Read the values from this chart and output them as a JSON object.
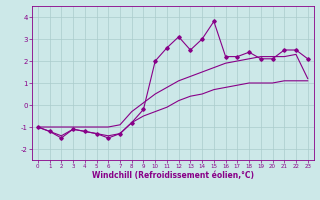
{
  "xlabel": "Windchill (Refroidissement éolien,°C)",
  "bg_color": "#cce8e8",
  "line_color": "#880088",
  "grid_color": "#aacccc",
  "x_main": [
    0,
    1,
    2,
    3,
    4,
    5,
    6,
    7,
    8,
    9,
    10,
    11,
    12,
    13,
    14,
    15,
    16,
    17,
    18,
    19,
    20,
    21,
    22,
    23
  ],
  "y_main": [
    -1.0,
    -1.2,
    -1.5,
    -1.1,
    -1.2,
    -1.3,
    -1.5,
    -1.3,
    -0.8,
    -0.2,
    2.0,
    2.6,
    3.1,
    2.5,
    3.0,
    3.8,
    2.2,
    2.2,
    2.4,
    2.1,
    2.1,
    2.5,
    2.5,
    2.1
  ],
  "y_upper": [
    -1.0,
    -1.0,
    -1.0,
    -1.0,
    -1.0,
    -1.0,
    -1.0,
    -0.9,
    -0.3,
    0.1,
    0.5,
    0.8,
    1.1,
    1.3,
    1.5,
    1.7,
    1.9,
    2.0,
    2.1,
    2.2,
    2.2,
    2.2,
    2.3,
    1.2
  ],
  "y_lower": [
    -1.0,
    -1.2,
    -1.4,
    -1.1,
    -1.2,
    -1.3,
    -1.4,
    -1.3,
    -0.8,
    -0.5,
    -0.3,
    -0.1,
    0.2,
    0.4,
    0.5,
    0.7,
    0.8,
    0.9,
    1.0,
    1.0,
    1.0,
    1.1,
    1.1,
    1.1
  ],
  "ylim": [
    -2.5,
    4.5
  ],
  "xlim": [
    -0.5,
    23.5
  ],
  "yticks": [
    -2,
    -1,
    0,
    1,
    2,
    3,
    4
  ],
  "xticks": [
    0,
    1,
    2,
    3,
    4,
    5,
    6,
    7,
    8,
    9,
    10,
    11,
    12,
    13,
    14,
    15,
    16,
    17,
    18,
    19,
    20,
    21,
    22,
    23
  ]
}
